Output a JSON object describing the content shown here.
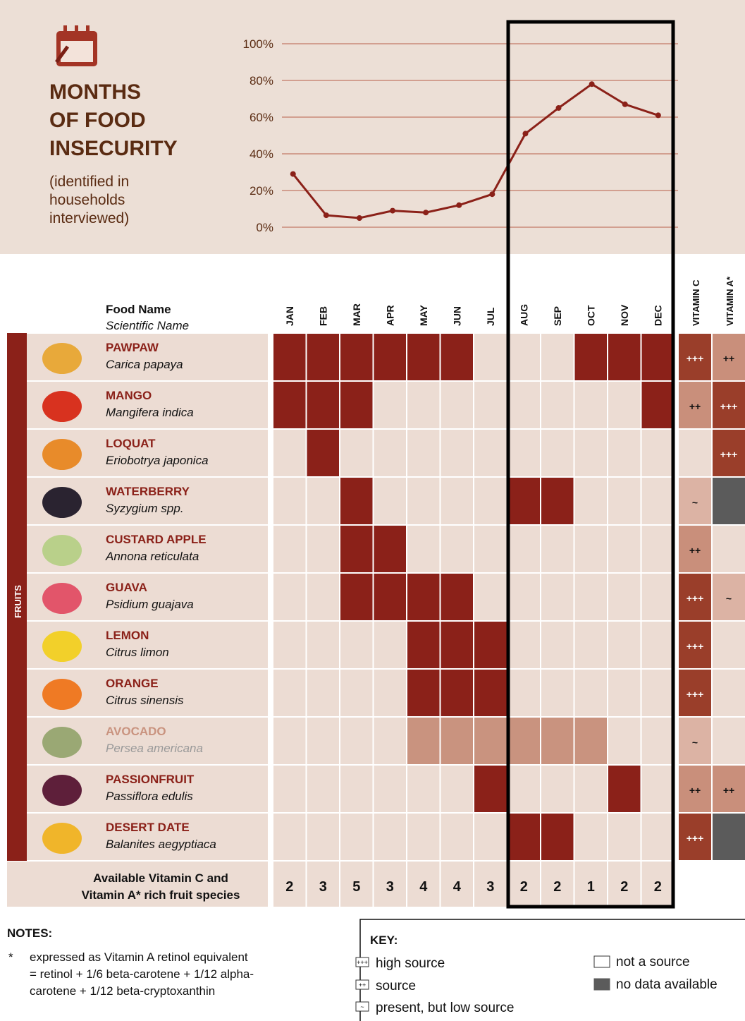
{
  "chart_data": {
    "type": "line",
    "title": [
      "MONTHS",
      "OF FOOD",
      "INSECURITY"
    ],
    "subtitle": [
      "(identified in",
      "households",
      "interviewed)"
    ],
    "categories": [
      "JAN",
      "FEB",
      "MAR",
      "APR",
      "MAY",
      "JUN",
      "JUL",
      "AUG",
      "SEP",
      "OCT",
      "NOV",
      "DEC"
    ],
    "values": [
      29,
      6.5,
      5,
      9,
      8,
      12,
      18,
      51,
      65,
      78,
      67,
      61
    ],
    "color": "#8b2119",
    "ylim": [
      0,
      100
    ],
    "yticks": [
      {
        "value": 0,
        "label": "0%"
      },
      {
        "value": 20,
        "label": "20%"
      },
      {
        "value": 40,
        "label": "40%"
      },
      {
        "value": 60,
        "label": "60%"
      },
      {
        "value": 80,
        "label": "80%"
      },
      {
        "value": 100,
        "label": "100%"
      }
    ],
    "grid": true
  },
  "table": {
    "header": {
      "food_name": "Food Name",
      "scientific_name": "Scientific Name",
      "vitamin_c": "VITAMIN C",
      "vitamin_a": "VITAMIN A*"
    },
    "group": "FRUITS",
    "rows": [
      {
        "name": "PAWPAW",
        "scientific": "Carica papaya",
        "color": "#8b2119",
        "months": [
          1,
          1,
          1,
          1,
          1,
          1,
          0,
          0,
          0,
          1,
          1,
          1
        ],
        "vitamin_c": 0,
        "vitamin_a": 1
      },
      {
        "name": "MANGO",
        "scientific": "Mangifera indica",
        "color": "#8b2119",
        "months": [
          1,
          1,
          1,
          0,
          0,
          0,
          0,
          0,
          0,
          0,
          0,
          1
        ],
        "vitamin_c": 1,
        "vitamin_a": 0
      },
      {
        "name": "LOQUAT",
        "scientific": "Eriobotrya japonica",
        "color": "#8b2119",
        "months": [
          0,
          1,
          0,
          0,
          0,
          0,
          0,
          0,
          0,
          0,
          0,
          0
        ],
        "vitamin_c": 3,
        "vitamin_a": 0
      },
      {
        "name": "WATERBERRY",
        "scientific": "Syzygium spp.",
        "color": "#8b2119",
        "months": [
          0,
          0,
          1,
          0,
          0,
          0,
          0,
          1,
          1,
          0,
          0,
          0
        ],
        "vitamin_c": 2,
        "vitamin_a": 4
      },
      {
        "name": "CUSTARD APPLE",
        "scientific": "Annona reticulata",
        "color": "#8b2119",
        "months": [
          0,
          0,
          1,
          1,
          0,
          0,
          0,
          0,
          0,
          0,
          0,
          0
        ],
        "vitamin_c": 1,
        "vitamin_a": 3
      },
      {
        "name": "GUAVA",
        "scientific": "Psidium guajava",
        "color": "#8b2119",
        "months": [
          0,
          0,
          1,
          1,
          1,
          1,
          0,
          0,
          0,
          0,
          0,
          0
        ],
        "vitamin_c": 0,
        "vitamin_a": 2
      },
      {
        "name": "LEMON",
        "scientific": "Citrus limon",
        "color": "#8b2119",
        "months": [
          0,
          0,
          0,
          0,
          1,
          1,
          1,
          0,
          0,
          0,
          0,
          0
        ],
        "vitamin_c": 0,
        "vitamin_a": 3
      },
      {
        "name": "ORANGE",
        "scientific": "Citrus sinensis",
        "color": "#8b2119",
        "months": [
          0,
          0,
          0,
          0,
          1,
          1,
          1,
          0,
          0,
          0,
          0,
          0
        ],
        "vitamin_c": 0,
        "vitamin_a": 3
      },
      {
        "name": "AVOCADO",
        "scientific": "Persea americana",
        "color": "#c9937f",
        "months": [
          0,
          0,
          0,
          0,
          1,
          1,
          1,
          1,
          1,
          1,
          0,
          0
        ],
        "vitamin_c": 2,
        "vitamin_a": 3
      },
      {
        "name": "PASSIONFRUIT",
        "scientific": "Passiflora edulis",
        "color": "#8b2119",
        "months": [
          0,
          0,
          0,
          0,
          0,
          0,
          1,
          0,
          0,
          0,
          1,
          0
        ],
        "vitamin_c": 1,
        "vitamin_a": 1
      },
      {
        "name": "DESERT DATE",
        "scientific": "Balanites aegyptiaca",
        "color": "#8b2119",
        "months": [
          0,
          0,
          0,
          0,
          0,
          0,
          0,
          1,
          1,
          0,
          0,
          0
        ],
        "vitamin_c": 0,
        "vitamin_a": 4
      }
    ],
    "totals_label": [
      "Available Vitamin C and",
      "Vitamin A* rich fruit species"
    ],
    "totals": [
      2,
      3,
      5,
      3,
      4,
      4,
      3,
      2,
      2,
      1,
      2,
      2
    ]
  },
  "notes": {
    "title": "NOTES:",
    "marker": "*",
    "lines": [
      "expressed as Vitamin A retinol equivalent",
      "= retinol + 1/6 beta-carotene + 1/12 alpha-",
      "carotene + 1/12 beta-cryptoxanthin"
    ]
  },
  "key": {
    "title": "KEY:",
    "items": [
      {
        "symbol": "+++",
        "label": "high source",
        "color": "#9a3e2a"
      },
      {
        "symbol": "++",
        "label": "source",
        "color": "#c98f7b"
      },
      {
        "symbol": "~",
        "label": "present, but low source",
        "color": "#dcb3a4"
      },
      {
        "label": "not a source",
        "color": "#ecdcd3"
      },
      {
        "label": "no data available",
        "color": "#5b5b5b"
      }
    ]
  }
}
